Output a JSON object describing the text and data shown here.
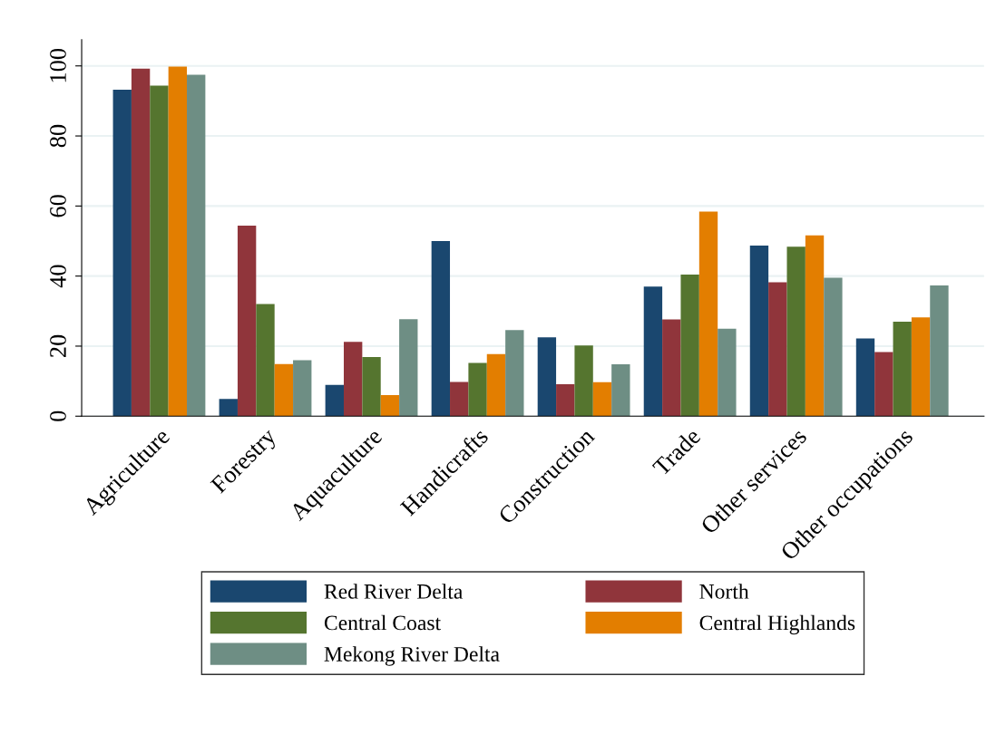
{
  "chart_data": {
    "type": "bar",
    "categories": [
      "Agriculture",
      "Forestry",
      "Aquaculture",
      "Handicrafts",
      "Construction",
      "Trade",
      "Other services",
      "Other occupations"
    ],
    "series": [
      {
        "name": "Red River Delta",
        "color": "#1a476f",
        "values": [
          93.2,
          4.9,
          8.9,
          50.0,
          22.5,
          37.0,
          48.7,
          22.2
        ]
      },
      {
        "name": "North",
        "color": "#90353b",
        "values": [
          99.2,
          54.4,
          21.2,
          9.8,
          9.1,
          27.6,
          38.2,
          18.3
        ]
      },
      {
        "name": "Central Coast",
        "color": "#55752f",
        "values": [
          94.4,
          32.0,
          16.9,
          15.2,
          20.2,
          40.4,
          48.4,
          27.0
        ]
      },
      {
        "name": "Central Highlands",
        "color": "#e37e00",
        "values": [
          99.8,
          14.9,
          6.0,
          17.7,
          9.7,
          58.4,
          51.6,
          28.2
        ]
      },
      {
        "name": "Mekong River Delta",
        "color": "#6e8e84",
        "values": [
          97.5,
          16.0,
          27.7,
          24.6,
          14.8,
          25.0,
          39.5,
          37.3
        ]
      }
    ],
    "ylim": [
      0,
      107.5
    ],
    "yticks": [
      0,
      20,
      40,
      60,
      80,
      100
    ],
    "grid": "y",
    "legend": "bottom"
  }
}
